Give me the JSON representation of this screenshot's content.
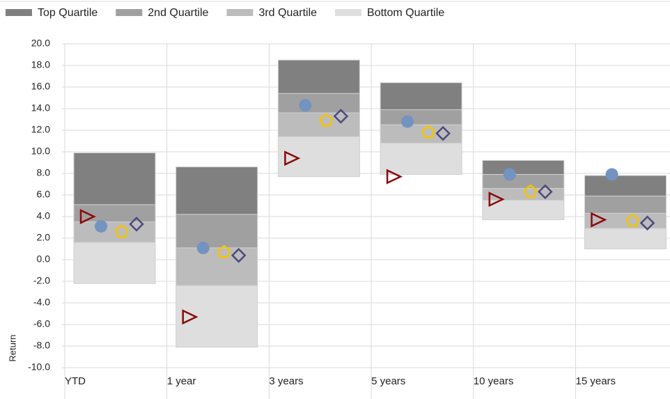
{
  "chart_data": {
    "type": "quartile-range",
    "y_label": "Return",
    "categories": [
      "YTD",
      "1 year",
      "3 years",
      "5 years",
      "10 years",
      "15 years"
    ],
    "series": [
      {
        "name": "Top Quartile",
        "color": "#808080",
        "low": [
          5.1,
          4.2,
          15.4,
          13.9,
          7.9,
          5.9
        ],
        "high": [
          9.9,
          8.6,
          18.5,
          16.4,
          9.2,
          7.8
        ]
      },
      {
        "name": "2nd Quartile",
        "color": "#a0a0a0",
        "low": [
          3.5,
          1.1,
          13.6,
          12.5,
          6.6,
          4.3
        ],
        "high": [
          5.1,
          4.2,
          15.4,
          13.9,
          7.9,
          5.9
        ]
      },
      {
        "name": "3rd Quartile",
        "color": "#bcbcbc",
        "low": [
          1.6,
          -2.4,
          11.4,
          10.8,
          5.5,
          2.9
        ],
        "high": [
          3.5,
          1.1,
          13.6,
          12.5,
          6.6,
          4.3
        ]
      },
      {
        "name": "Bottom Quartile",
        "color": "#dedede",
        "low": [
          -2.2,
          -8.1,
          7.7,
          7.9,
          3.7,
          1.0
        ],
        "high": [
          1.6,
          -2.4,
          11.4,
          10.8,
          5.5,
          2.9
        ]
      }
    ],
    "markers": [
      {
        "shape": "triangle",
        "color": "#8b0a0a",
        "values": [
          4.0,
          -5.3,
          9.4,
          7.7,
          5.6,
          3.7
        ]
      },
      {
        "shape": "circle",
        "color": "#7393c0",
        "values": [
          3.1,
          1.1,
          14.3,
          12.8,
          7.9,
          7.9
        ]
      },
      {
        "shape": "pentagon",
        "color": "#f5c400",
        "values": [
          2.6,
          0.7,
          12.9,
          11.8,
          6.3,
          3.6
        ]
      },
      {
        "shape": "diamond",
        "color": "#4b4a7e",
        "values": [
          3.3,
          0.4,
          13.3,
          11.7,
          6.3,
          3.4
        ]
      }
    ],
    "ylim": [
      -10,
      20
    ],
    "yticks": [
      {
        "value": -10,
        "label": "-10.0"
      },
      {
        "value": -8,
        "label": "-8.0"
      },
      {
        "value": -6,
        "label": "-6.0"
      },
      {
        "value": -4,
        "label": "-4.0"
      },
      {
        "value": -2,
        "label": "-2.0"
      },
      {
        "value": 0,
        "label": "0.0"
      },
      {
        "value": 2,
        "label": "2.0"
      },
      {
        "value": 4,
        "label": "4.0"
      },
      {
        "value": 6,
        "label": "6.0"
      },
      {
        "value": 8,
        "label": "8.0"
      },
      {
        "value": 10,
        "label": "10.0"
      },
      {
        "value": 12,
        "label": "12.0"
      },
      {
        "value": 14,
        "label": "14.0"
      },
      {
        "value": 16,
        "label": "16.0"
      },
      {
        "value": 18,
        "label": "18.0"
      },
      {
        "value": 20,
        "label": "20.0"
      }
    ],
    "grid": true
  }
}
